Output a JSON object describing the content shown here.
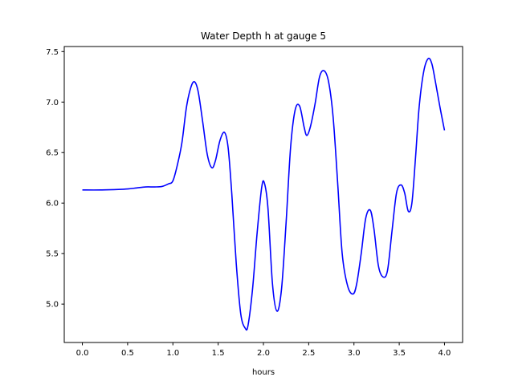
{
  "chart_data": {
    "type": "line",
    "title": "Water Depth h at gauge 5",
    "xlabel": "hours",
    "ylabel": "",
    "xlim": [
      -0.2,
      4.2
    ],
    "ylim": [
      4.62,
      7.55
    ],
    "xticks": [
      0.0,
      0.5,
      1.0,
      1.5,
      2.0,
      2.5,
      3.0,
      3.5,
      4.0
    ],
    "xtick_labels": [
      "0.0",
      "0.5",
      "1.0",
      "1.5",
      "2.0",
      "2.5",
      "3.0",
      "3.5",
      "4.0"
    ],
    "yticks": [
      5.0,
      5.5,
      6.0,
      6.5,
      7.0,
      7.5
    ],
    "ytick_labels": [
      "5.0",
      "5.5",
      "6.0",
      "6.5",
      "7.0",
      "7.5"
    ],
    "grid": false,
    "series": [
      {
        "color": "#0000ff",
        "x": [
          0.0,
          0.2,
          0.4,
          0.5,
          0.6,
          0.7,
          0.8,
          0.88,
          0.95,
          1.0,
          1.05,
          1.1,
          1.15,
          1.2,
          1.24,
          1.28,
          1.33,
          1.38,
          1.43,
          1.47,
          1.52,
          1.57,
          1.61,
          1.65,
          1.7,
          1.75,
          1.8,
          1.83,
          1.88,
          1.93,
          1.98,
          2.01,
          2.05,
          2.1,
          2.15,
          2.2,
          2.25,
          2.3,
          2.35,
          2.4,
          2.45,
          2.48,
          2.52,
          2.57,
          2.62,
          2.67,
          2.72,
          2.77,
          2.82,
          2.87,
          2.93,
          2.99,
          3.03,
          3.08,
          3.13,
          3.18,
          3.22,
          3.27,
          3.32,
          3.37,
          3.42,
          3.47,
          3.52,
          3.56,
          3.6,
          3.64,
          3.68,
          3.72,
          3.77,
          3.82,
          3.86,
          3.9,
          3.95,
          4.0
        ],
        "y": [
          6.13,
          6.13,
          6.135,
          6.14,
          6.15,
          6.16,
          6.16,
          6.165,
          6.19,
          6.22,
          6.38,
          6.6,
          6.95,
          7.15,
          7.2,
          7.1,
          6.8,
          6.48,
          6.35,
          6.42,
          6.62,
          6.7,
          6.55,
          6.1,
          5.4,
          4.9,
          4.76,
          4.79,
          5.15,
          5.7,
          6.15,
          6.2,
          5.95,
          5.2,
          4.93,
          5.15,
          5.8,
          6.55,
          6.92,
          6.96,
          6.75,
          6.67,
          6.76,
          6.98,
          7.25,
          7.31,
          7.2,
          6.85,
          6.2,
          5.5,
          5.18,
          5.1,
          5.2,
          5.5,
          5.85,
          5.93,
          5.75,
          5.38,
          5.27,
          5.33,
          5.72,
          6.1,
          6.18,
          6.1,
          5.92,
          6.0,
          6.45,
          6.95,
          7.3,
          7.43,
          7.38,
          7.2,
          6.95,
          6.72
        ]
      }
    ]
  }
}
